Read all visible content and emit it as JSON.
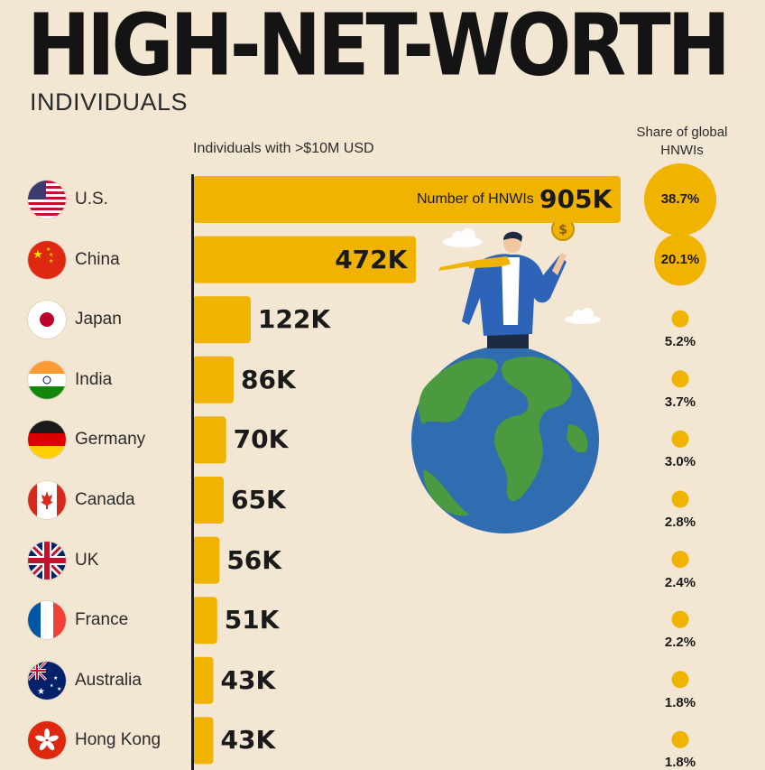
{
  "title": "HIGH-NET-WORTH",
  "subtitle": "INDIVIDUALS",
  "colors": {
    "bar": "#f0b400",
    "background": "#f3e6d2",
    "text": "#1a1a1a",
    "earth_ocean": "#2f6db0",
    "earth_land": "#4c9a3f",
    "suit": "#2e64b8"
  },
  "illustration": {
    "description_icon": "businessman-on-globe-icon"
  },
  "chart_data": {
    "type": "bar",
    "orientation": "horizontal",
    "bars_header": "Individuals with >$10M USD",
    "share_header": "Share of global HNWIs",
    "value_legend": "Number of HNWIs",
    "xlim": [
      0,
      905
    ],
    "categories": [
      "U.S.",
      "China",
      "Japan",
      "India",
      "Germany",
      "Canada",
      "UK",
      "France",
      "Australia",
      "Hong Kong"
    ],
    "flags": [
      "us-flag-icon",
      "china-flag-icon",
      "japan-flag-icon",
      "india-flag-icon",
      "germany-flag-icon",
      "canada-flag-icon",
      "uk-flag-icon",
      "france-flag-icon",
      "australia-flag-icon",
      "hong-kong-flag-icon"
    ],
    "values": [
      905,
      472,
      122,
      86,
      70,
      65,
      56,
      51,
      43,
      43
    ],
    "value_labels": [
      "905K",
      "472K",
      "122K",
      "86K",
      "70K",
      "65K",
      "56K",
      "51K",
      "43K",
      "43K"
    ],
    "share_values": [
      38.7,
      20.1,
      5.2,
      3.7,
      3.0,
      2.8,
      2.4,
      2.2,
      1.8,
      1.8
    ],
    "share_labels": [
      "38.7%",
      "20.1%",
      "5.2%",
      "3.7%",
      "3.0%",
      "2.8%",
      "2.4%",
      "2.2%",
      "1.8%",
      "1.8%"
    ]
  }
}
